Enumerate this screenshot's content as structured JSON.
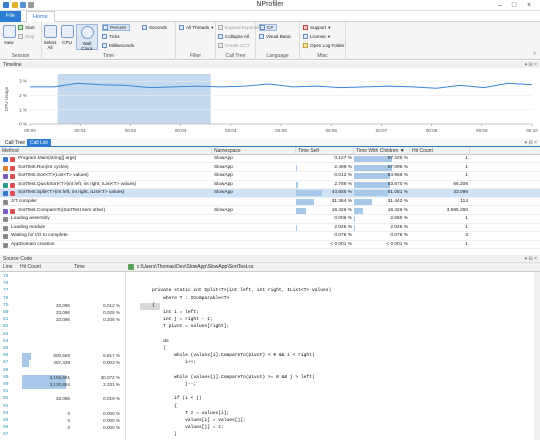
{
  "app": {
    "title": "NProfiler"
  },
  "ribbon_tabs": [
    "File",
    "Home"
  ],
  "ribbon": {
    "session": {
      "label": "Session",
      "new": "New",
      "start": "Start",
      "stop": "Stop"
    },
    "time": {
      "label": "Time",
      "select_all": "Select All",
      "cpu": "CPU",
      "wall_clock": "Wall Clock",
      "percent": "Percent",
      "seconds": "Seconds",
      "ticks": "Ticks",
      "milliseconds": "Milliseconds"
    },
    "filter": {
      "label": "Filter",
      "all_threads": "All Threads"
    },
    "call_tree": {
      "label": "Call Tree",
      "expand_expensive": "Expand Expensive",
      "collapse_all": "Collapse All",
      "create_cct": "Create CCT"
    },
    "language": {
      "label": "Language",
      "cs": "C#",
      "visual_basic": "Visual Basic"
    },
    "misc": {
      "label": "Misc",
      "support": "Support",
      "license": "License",
      "open_log_folder": "Open Log Folder"
    }
  },
  "timeline": {
    "header": "Timeline",
    "y_axis_label": "CPU Usage",
    "y_ticks": [
      "3 %",
      "2 %",
      "1 %",
      "0 %"
    ],
    "x_ticks": [
      "00:00",
      "00:01",
      "00:02",
      "00:03",
      "00:04",
      "00:05",
      "00:06",
      "00:07",
      "00:08",
      "00:09",
      "00:10"
    ],
    "cpu_series": [
      2.6,
      2.6,
      2.85,
      2.75,
      2.7,
      2.55,
      2.6,
      2.65,
      2.6,
      2.65,
      2.8,
      2.6,
      2.65,
      2.55,
      2.6,
      2.65,
      2.6,
      2.5,
      2.7,
      2.55,
      2.85,
      2.75
    ],
    "selection": {
      "from": 0.55,
      "to": 3.6
    },
    "y_range": [
      0,
      3.5
    ]
  },
  "calltree": {
    "tabs": [
      "Call Tree",
      "Call List"
    ],
    "active_tab": "Call List",
    "columns": [
      "Method",
      "Namespace",
      "Time Self",
      "Time With Children",
      "Hit Count"
    ],
    "rows": [
      {
        "method": "Program.Main(string[] args)",
        "namespace": "SlowApp",
        "self": "0.127 %",
        "self_pct": 0.127,
        "children": "67.225 %",
        "children_pct": 67.225,
        "hits": "1"
      },
      {
        "method": "SortTest.Run(int cycles)",
        "namespace": "SlowApp",
        "self": "2.499 %",
        "self_pct": 2.499,
        "children": "67.095 %",
        "children_pct": 67.095,
        "hits": "1"
      },
      {
        "method": "SortTest.Sort<T>(List<T> values)",
        "namespace": "SlowApp",
        "self": "0.012 %",
        "self_pct": 0.012,
        "children": "63.966 %",
        "children_pct": 63.966,
        "hits": "1"
      },
      {
        "method": "SortTest.QuickSort<T>(int left, int right, IList<T> values)",
        "namespace": "SlowApp",
        "self": "2.789 %",
        "self_pct": 2.789,
        "children": "63.870 %",
        "children_pct": 63.87,
        "hits": "66,208"
      },
      {
        "method": "SortTest.Split<T>(int left, int right, IList<T> values)",
        "namespace": "SlowApp",
        "self": "44.655 %",
        "self_pct": 44.655,
        "children": "61.081 %",
        "children_pct": 61.081,
        "hits": "33,096",
        "selected": true
      },
      {
        "method": "JIT compiler",
        "namespace": "",
        "self": "31.364 %",
        "self_pct": 31.364,
        "children": "31.442 %",
        "children_pct": 31.442,
        "hits": "114"
      },
      {
        "method": "SortTest.CompareTo(SortTest item other)",
        "namespace": "SlowApp",
        "self": "16.426 %",
        "self_pct": 16.426,
        "children": "16.426 %",
        "children_pct": 16.426,
        "hits": "3,595,260"
      },
      {
        "method": "Loading assembly",
        "namespace": "",
        "self": "0.006 %",
        "self_pct": 0.006,
        "children": "2.050 %",
        "children_pct": 2.05,
        "hits": "1"
      },
      {
        "method": "Loading module",
        "namespace": "",
        "self": "2.045 %",
        "self_pct": 2.045,
        "children": "2.045 %",
        "children_pct": 2.045,
        "hits": "1"
      },
      {
        "method": "Waiting for I/O to complete",
        "namespace": "",
        "self": "0.078 %",
        "self_pct": 0.078,
        "children": "0.078 %",
        "children_pct": 0.078,
        "hits": "3"
      },
      {
        "method": "AppDomain creation",
        "namespace": "",
        "self": "< 0.001 %",
        "self_pct": 0,
        "children": "< 0.001 %",
        "children_pct": 0,
        "hits": "1"
      }
    ]
  },
  "source": {
    "header": "Source Code",
    "path": "c:\\Users\\Thomas\\Dev\\SlowApp\\SlowApp\\SortTest.cs",
    "columns": [
      "Line",
      "Hit Count",
      "Time"
    ],
    "lines": [
      {
        "ln": "75",
        "hits": "",
        "time": "",
        "code": ""
      },
      {
        "ln": "76",
        "hits": "",
        "time": "",
        "code": ""
      },
      {
        "ln": "77",
        "hits": "",
        "time": "",
        "code": "        private static int Split<T>(int left, int right, IList<T> values)"
      },
      {
        "ln": "78",
        "hits": "",
        "time": "",
        "code": "            where T : IComparable<T>"
      },
      {
        "ln": "79",
        "hits": "33,096",
        "time": "0.012 %",
        "code": "        {",
        "hl": true
      },
      {
        "ln": "80",
        "hits": "33,096",
        "time": "0.025 %",
        "code": "            int i = left;"
      },
      {
        "ln": "81",
        "hits": "33,096",
        "time": "0.206 %",
        "code": "            int j = right - 1;"
      },
      {
        "ln": "82",
        "hits": "",
        "time": "",
        "code": "            T pivot = values[right];"
      },
      {
        "ln": "83",
        "hits": "",
        "time": "",
        "code": ""
      },
      {
        "ln": "84",
        "hits": "",
        "time": "",
        "code": "            do"
      },
      {
        "ln": "85",
        "hits": "",
        "time": "",
        "code": "            {"
      },
      {
        "ln": "86",
        "hits": "600,559",
        "time": "6.817 %",
        "code": "                while (values[i].CompareTo(pivot) < 0 && i < right)",
        "bar": 0.17
      },
      {
        "ln": "87",
        "hits": "467,439",
        "time": "0.003 %",
        "code": "                    i++;",
        "bar": 0.13
      },
      {
        "ln": "88",
        "hits": "",
        "time": "",
        "code": ""
      },
      {
        "ln": "89",
        "hits": "3,155,991",
        "time": "30.072 %",
        "code": "                while (values[j].CompareTo(pivot) >= 0 && j > left)",
        "bar": 0.88
      },
      {
        "ln": "90",
        "hits": "3,130,864",
        "time": "2.331 %",
        "code": "                    j--;",
        "bar": 0.87
      },
      {
        "ln": "91",
        "hits": "",
        "time": "",
        "code": ""
      },
      {
        "ln": "92",
        "hits": "33,096",
        "time": "0.019 %",
        "code": "                if (i < j)"
      },
      {
        "ln": "93",
        "hits": "",
        "time": "",
        "code": "                {"
      },
      {
        "ln": "94",
        "hits": "0",
        "time": "0.000 %",
        "code": "                    T z = values[i];"
      },
      {
        "ln": "95",
        "hits": "0",
        "time": "0.000 %",
        "code": "                    values[i] = values[j];"
      },
      {
        "ln": "96",
        "hits": "0",
        "time": "0.000 %",
        "code": "                    values[j] = z;"
      },
      {
        "ln": "97",
        "hits": "",
        "time": "",
        "code": "                }"
      }
    ]
  },
  "colors": {
    "accent": "#2b7cd3",
    "bar": "#a8c8ea",
    "selection": "#cfe2f7",
    "timeline_sel": "#c5d9ee",
    "line": "#3a86d8"
  }
}
